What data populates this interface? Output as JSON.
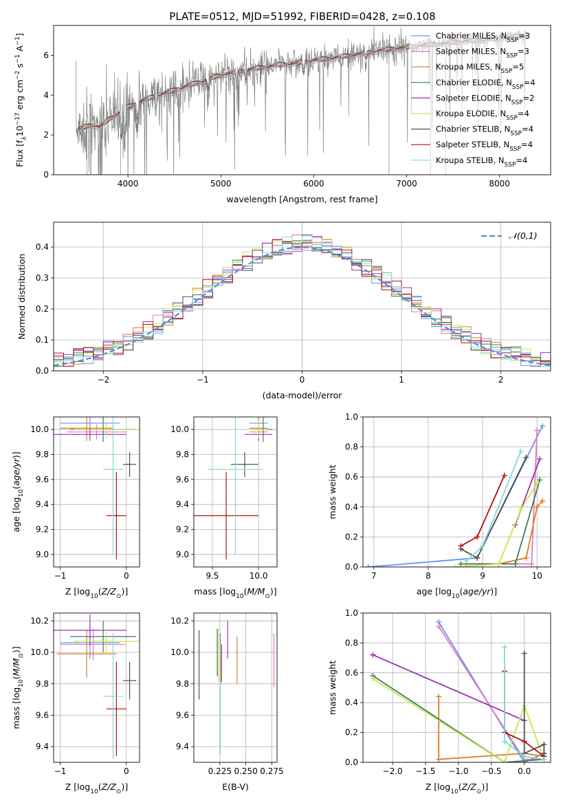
{
  "figure": {
    "title": "PLATE=0512, MJD=51992, FIBERID=0428, z=0.108"
  },
  "series": [
    {
      "name": "Chabrier MILES, N_SSP=3",
      "color": "#6495ed"
    },
    {
      "name": "Salpeter MILES, N_SSP=3",
      "color": "#e377c2"
    },
    {
      "name": "Kroupa MILES, N_SSP=5",
      "color": "#e07820"
    },
    {
      "name": "Chabrier ELODIE, N_SSP=4",
      "color": "#3a7d5c"
    },
    {
      "name": "Salpeter ELODIE, N_SSP=2",
      "color": "#9b30b5"
    },
    {
      "name": "Kroupa ELODIE, N_SSP=4",
      "color": "#c8e650"
    },
    {
      "name": "Chabrier STELIB, N_SSP=4",
      "color": "#505050"
    },
    {
      "name": "Salpeter STELIB, N_SSP=4",
      "color": "#b01010"
    },
    {
      "name": "Kroupa STELIB, N_SSP=4",
      "color": "#80d8dc"
    }
  ],
  "chart_data": [
    {
      "id": "spectrum",
      "type": "line",
      "xlabel": "wavelength [Angstrom, rest frame]",
      "ylabel": "Flux [f_λ 10^-17 erg cm^-2 s^-1 A^-1]",
      "xlim": [
        3200,
        8550
      ],
      "ylim": [
        0,
        7.5
      ],
      "xticks": [
        4000,
        5000,
        6000,
        7000,
        8000
      ],
      "yticks": [
        0,
        2,
        4,
        6
      ],
      "grid": false,
      "legend": "top-right",
      "data_color": "#808080",
      "continuum_x": [
        3480,
        3600,
        3700,
        3800,
        4000,
        4200,
        4400,
        4600,
        4800,
        5000,
        5200,
        5400,
        5600,
        5800,
        6000,
        6200,
        6400,
        6600,
        6800,
        7000,
        7200,
        7400,
        7600,
        7800,
        8000,
        8200,
        8300
      ],
      "continuum_y": [
        2.3,
        2.5,
        2.4,
        2.8,
        3.4,
        3.8,
        4.1,
        4.4,
        4.7,
        5.0,
        5.2,
        5.35,
        5.5,
        5.6,
        5.75,
        5.85,
        6.0,
        6.15,
        6.3,
        6.4,
        6.5,
        6.6,
        6.7,
        6.75,
        6.85,
        6.95,
        7.0
      ],
      "model_lines": [
        {
          "lam": 3933,
          "depth": 1.8
        },
        {
          "lam": 3968,
          "depth": 1.6
        },
        {
          "lam": 4101,
          "depth": 1.0
        },
        {
          "lam": 4300,
          "depth": 0.9
        },
        {
          "lam": 4861,
          "depth": 0.6
        },
        {
          "lam": 5175,
          "depth": 0.8
        },
        {
          "lam": 5270,
          "depth": 0.5
        },
        {
          "lam": 5890,
          "depth": 0.7
        },
        {
          "lam": 6563,
          "depth": 0.3
        }
      ],
      "spikes": [
        {
          "lam": 3560,
          "y": 0
        },
        {
          "lam": 3680,
          "y": 0
        },
        {
          "lam": 3700,
          "y": 0
        },
        {
          "lam": 3920,
          "y": 0
        },
        {
          "lam": 6810,
          "y": 0
        },
        {
          "lam": 7260,
          "y": 0
        },
        {
          "lam": 7420,
          "y": 0
        }
      ]
    },
    {
      "id": "residual-histogram",
      "type": "histogram",
      "xlabel": "(data-model)/error",
      "ylabel": "Normed distribution",
      "xlim": [
        -2.5,
        2.5
      ],
      "ylim": [
        0,
        0.48
      ],
      "xticks": [
        -2,
        -1,
        0,
        1,
        2
      ],
      "yticks": [
        0.0,
        0.1,
        0.2,
        0.3,
        0.4
      ],
      "grid": true,
      "legend": "top-right",
      "reference_label": "𝒩(0,1)",
      "reference_color": "#5b8ad6",
      "bin_edges_start": -2.5,
      "bin_width": 0.1
    },
    {
      "id": "age-vs-metallicity",
      "type": "errorbar",
      "xlabel": "Z [log10(Z/Z⊙)]",
      "ylabel": "age [log10(age/yr)]",
      "xlim": [
        -1.1,
        0.2
      ],
      "ylim": [
        8.9,
        10.1
      ],
      "xticks": [
        -1,
        0
      ],
      "yticks": [
        9.0,
        9.2,
        9.4,
        9.6,
        9.8,
        10.0
      ],
      "grid": true,
      "points": [
        {
          "s": 0,
          "x": -0.55,
          "xerr": [
            0.45,
            0.45
          ],
          "y": 10.05,
          "yerr": [
            0.05,
            0.05
          ]
        },
        {
          "s": 1,
          "x": -0.45,
          "xerr": [
            0.45,
            0.45
          ],
          "y": 9.98,
          "yerr": [
            0.06,
            0.06
          ]
        },
        {
          "s": 2,
          "x": -0.6,
          "xerr": [
            0.4,
            0.4
          ],
          "y": 10.01,
          "yerr": [
            0.1,
            0.1
          ]
        },
        {
          "s": 3,
          "x": -0.35,
          "xerr": [
            0.5,
            0.5
          ],
          "y": 10.0,
          "yerr": [
            0.1,
            0.1
          ]
        },
        {
          "s": 4,
          "x": -0.55,
          "xerr": [
            0.55,
            0.55
          ],
          "y": 9.96,
          "yerr": [
            0.05,
            0.05
          ]
        },
        {
          "s": 5,
          "x": -0.3,
          "xerr": [
            0.5,
            0.5
          ],
          "y": 10.0,
          "yerr": [
            0.07,
            0.07
          ]
        },
        {
          "s": 6,
          "x": 0.05,
          "xerr": [
            0.1,
            0.1
          ],
          "y": 9.72,
          "yerr": [
            0.1,
            0.1
          ]
        },
        {
          "s": 7,
          "x": -0.15,
          "xerr": [
            0.15,
            0.15
          ],
          "y": 9.31,
          "yerr": [
            0.35,
            0.35
          ]
        },
        {
          "s": 8,
          "x": -0.2,
          "xerr": [
            0.15,
            0.15
          ],
          "y": 9.68,
          "yerr": [
            0.68,
            0.68
          ]
        }
      ]
    },
    {
      "id": "age-vs-mass",
      "type": "errorbar",
      "xlabel": "mass [log10(M/M⊙)]",
      "xlim": [
        9.3,
        10.2
      ],
      "ylim": [
        8.9,
        10.1
      ],
      "xticks": [
        9.5,
        10.0
      ],
      "yticks": [
        9.0,
        9.2,
        9.4,
        9.6,
        9.8,
        10.0
      ],
      "grid": true,
      "points": [
        {
          "s": 0,
          "x": 10.0,
          "xerr": [
            0.1,
            0.1
          ],
          "y": 10.05,
          "yerr": [
            0.05,
            0.05
          ]
        },
        {
          "s": 1,
          "x": 10.0,
          "xerr": [
            0.1,
            0.1
          ],
          "y": 9.98,
          "yerr": [
            0.06,
            0.06
          ]
        },
        {
          "s": 2,
          "x": 10.0,
          "xerr": [
            0.1,
            0.1
          ],
          "y": 10.01,
          "yerr": [
            0.1,
            0.1
          ]
        },
        {
          "s": 3,
          "x": 10.05,
          "xerr": [
            0.1,
            0.1
          ],
          "y": 10.0,
          "yerr": [
            0.1,
            0.1
          ]
        },
        {
          "s": 4,
          "x": 10.0,
          "xerr": [
            0.15,
            0.15
          ],
          "y": 9.96,
          "yerr": [
            0.05,
            0.05
          ]
        },
        {
          "s": 5,
          "x": 10.0,
          "xerr": [
            0.1,
            0.1
          ],
          "y": 10.0,
          "yerr": [
            0.07,
            0.07
          ]
        },
        {
          "s": 6,
          "x": 9.85,
          "xerr": [
            0.15,
            0.15
          ],
          "y": 9.72,
          "yerr": [
            0.1,
            0.1
          ]
        },
        {
          "s": 7,
          "x": 9.65,
          "xerr": [
            0.35,
            0.35
          ],
          "y": 9.31,
          "yerr": [
            0.35,
            0.35
          ]
        },
        {
          "s": 8,
          "x": 9.75,
          "xerr": [
            0.3,
            0.3
          ],
          "y": 9.68,
          "yerr": [
            0.68,
            0.68
          ]
        }
      ]
    },
    {
      "id": "weight-vs-age",
      "type": "line",
      "xlabel": "age [log10(age/yr)]",
      "ylabel": "mass weight",
      "xlim": [
        6.8,
        10.25
      ],
      "ylim": [
        0,
        1.0
      ],
      "xticks": [
        7,
        8,
        9,
        10
      ],
      "yticks": [
        0.0,
        0.2,
        0.4,
        0.6,
        0.8,
        1.0
      ],
      "grid": true,
      "lines": [
        {
          "s": 0,
          "x": [
            6.9,
            8.9,
            10.1
          ],
          "y": [
            0.0,
            0.06,
            0.94
          ]
        },
        {
          "s": 1,
          "x": [
            8.6,
            9.9,
            10.0
          ],
          "y": [
            0.02,
            0.02,
            0.91
          ]
        },
        {
          "s": 2,
          "x": [
            8.7,
            9.3,
            9.8,
            10.0,
            10.1
          ],
          "y": [
            0.02,
            0.02,
            0.06,
            0.4,
            0.44
          ]
        },
        {
          "s": 3,
          "x": [
            8.6,
            9.6,
            10.05
          ],
          "y": [
            0.02,
            0.02,
            0.58
          ]
        },
        {
          "s": 4,
          "x": [
            9.6,
            10.05
          ],
          "y": [
            0.28,
            0.72
          ]
        },
        {
          "s": 5,
          "x": [
            8.5,
            9.3,
            9.7,
            10.0
          ],
          "y": [
            0.0,
            0.02,
            0.38,
            0.56
          ]
        },
        {
          "s": 6,
          "x": [
            8.6,
            8.9,
            9.8
          ],
          "y": [
            0.12,
            0.06,
            0.73
          ]
        },
        {
          "s": 7,
          "x": [
            8.6,
            8.9,
            9.4
          ],
          "y": [
            0.14,
            0.2,
            0.61
          ]
        },
        {
          "s": 8,
          "x": [
            8.7,
            9.0,
            9.7
          ],
          "y": [
            0.04,
            0.14,
            0.77
          ]
        }
      ]
    },
    {
      "id": "mass-vs-metallicity",
      "type": "errorbar",
      "xlabel": "Z [log10(Z/Z⊙)]",
      "ylabel": "mass [log10(M/M⊙)]",
      "xlim": [
        -1.1,
        0.2
      ],
      "ylim": [
        9.3,
        10.25
      ],
      "xticks": [
        -1,
        0
      ],
      "yticks": [
        9.4,
        9.6,
        9.8,
        10.0,
        10.2
      ],
      "grid": true,
      "points": [
        {
          "s": 0,
          "x": -0.55,
          "xerr": [
            0.45,
            0.45
          ],
          "y": 10.06,
          "yerr": [
            0.1,
            0.1
          ]
        },
        {
          "s": 1,
          "x": -0.5,
          "xerr": [
            0.5,
            0.5
          ],
          "y": 10.05,
          "yerr": [
            0.1,
            0.1
          ]
        },
        {
          "s": 2,
          "x": -0.6,
          "xerr": [
            0.45,
            0.45
          ],
          "y": 9.99,
          "yerr": [
            0.15,
            0.15
          ]
        },
        {
          "s": 3,
          "x": -0.35,
          "xerr": [
            0.5,
            0.5
          ],
          "y": 10.1,
          "yerr": [
            0.1,
            0.1
          ]
        },
        {
          "s": 4,
          "x": -0.55,
          "xerr": [
            0.55,
            0.55
          ],
          "y": 10.14,
          "yerr": [
            0.1,
            0.1
          ]
        },
        {
          "s": 5,
          "x": -0.3,
          "xerr": [
            0.5,
            0.5
          ],
          "y": 10.07,
          "yerr": [
            0.08,
            0.08
          ]
        },
        {
          "s": 6,
          "x": 0.05,
          "xerr": [
            0.1,
            0.1
          ],
          "y": 9.82,
          "yerr": [
            0.12,
            0.12
          ]
        },
        {
          "s": 7,
          "x": -0.15,
          "xerr": [
            0.15,
            0.15
          ],
          "y": 9.64,
          "yerr": [
            0.3,
            0.3
          ]
        },
        {
          "s": 8,
          "x": -0.2,
          "xerr": [
            0.15,
            0.15
          ],
          "y": 9.72,
          "yerr": [
            0.4,
            0.4
          ]
        }
      ]
    },
    {
      "id": "mass-vs-ebv",
      "type": "errorbar",
      "xlabel": "E(B-V)",
      "xlim": [
        0.2,
        0.28
      ],
      "ylim": [
        9.3,
        10.25
      ],
      "xticks": [
        0.225,
        0.25,
        0.275
      ],
      "xtick_labels": [
        "0.225",
        "0.250",
        "0.275"
      ],
      "yticks": [
        9.4,
        9.6,
        9.8,
        10.0,
        10.2
      ],
      "grid": true,
      "points": [
        {
          "s": 0,
          "x": 0.2255,
          "y": 10.0,
          "yerr": [
            0.12,
            0.12
          ]
        },
        {
          "s": 1,
          "x": 0.277,
          "y": 9.95,
          "yerr": [
            0.17,
            0.17
          ]
        },
        {
          "s": 2,
          "x": 0.2415,
          "y": 9.95,
          "yerr": [
            0.15,
            0.15
          ]
        },
        {
          "s": 3,
          "x": 0.2225,
          "y": 10.0,
          "yerr": [
            0.15,
            0.15
          ]
        },
        {
          "s": 4,
          "x": 0.2325,
          "y": 10.08,
          "yerr": [
            0.12,
            0.12
          ]
        },
        {
          "s": 5,
          "x": 0.2235,
          "y": 9.98,
          "yerr": [
            0.17,
            0.17
          ]
        },
        {
          "s": 6,
          "x": 0.205,
          "y": 9.92,
          "yerr": [
            0.22,
            0.22
          ]
        },
        {
          "s": 7,
          "x": 0.2265,
          "y": 9.93,
          "yerr": [
            0.12,
            0.12
          ]
        },
        {
          "s": 8,
          "x": 0.2255,
          "y": 9.7,
          "yerr": [
            0.35,
            0.35
          ]
        }
      ]
    },
    {
      "id": "weight-vs-metallicity",
      "type": "line",
      "xlabel": "Z [log10(Z/Z⊙)]",
      "ylabel": "mass weight",
      "xlim": [
        -2.45,
        0.4
      ],
      "ylim": [
        0,
        1.0
      ],
      "xticks": [
        -2.0,
        -1.5,
        -1.0,
        -0.5,
        0.0
      ],
      "yticks": [
        0.0,
        0.2,
        0.4,
        0.6,
        0.8,
        1.0
      ],
      "grid": true,
      "lines": [
        {
          "s": 0,
          "x": [
            -1.3,
            0.0,
            0.3
          ],
          "y": [
            0.94,
            0.0,
            0.06
          ]
        },
        {
          "s": 1,
          "x": [
            -1.3,
            0.0,
            0.3
          ],
          "y": [
            0.91,
            0.02,
            0.02
          ]
        },
        {
          "s": 2,
          "x": [
            -1.3,
            -1.3,
            0.0,
            0.3,
            0.3
          ],
          "y": [
            0.44,
            0.02,
            0.06,
            0.04,
            0.04
          ]
        },
        {
          "s": 3,
          "x": [
            -2.3,
            -0.3,
            0.3
          ],
          "y": [
            0.58,
            0.0,
            0.02
          ]
        },
        {
          "s": 4,
          "x": [
            -2.3,
            0.0
          ],
          "y": [
            0.72,
            0.28
          ]
        },
        {
          "s": 5,
          "x": [
            -2.3,
            -0.3,
            0.0,
            0.3
          ],
          "y": [
            0.56,
            0.0,
            0.38,
            0.02
          ]
        },
        {
          "s": 6,
          "x": [
            0.0,
            0.0,
            0.3,
            0.3
          ],
          "y": [
            0.73,
            0.06,
            0.12,
            0.06
          ]
        },
        {
          "s": 7,
          "x": [
            -0.3,
            -0.3,
            0.0,
            0.3
          ],
          "y": [
            0.61,
            0.2,
            0.14,
            0.04
          ]
        },
        {
          "s": 8,
          "x": [
            -0.3,
            -0.3,
            0.0,
            0.3
          ],
          "y": [
            0.77,
            0.14,
            0.04,
            0.02
          ]
        }
      ]
    }
  ]
}
